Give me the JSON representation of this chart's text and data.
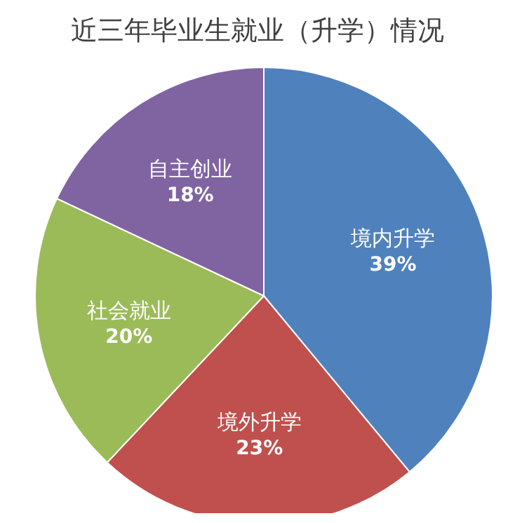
{
  "chart_data": {
    "type": "pie",
    "title": "近三年毕业生就业（升学）情况",
    "categories": [
      "境内升学",
      "境外升学",
      "社会就业",
      "自主创业"
    ],
    "values": [
      39,
      23,
      20,
      18
    ],
    "value_labels": [
      "39%",
      "23%",
      "20%",
      "18%"
    ],
    "colors": [
      "#4f81bd",
      "#c0504d",
      "#9bbb59",
      "#8064a2"
    ],
    "legend": false
  }
}
